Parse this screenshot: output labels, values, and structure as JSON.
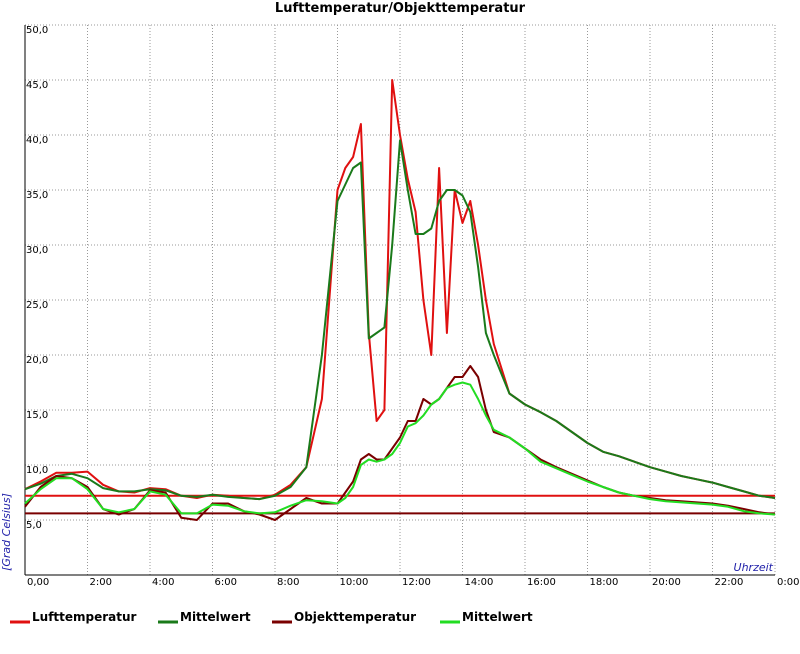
{
  "chart_data": {
    "type": "line",
    "title": "Lufttemperatur/Objekttemperatur",
    "y_label": "[Grad Celsius]",
    "x_label": "Uhrzeit",
    "grid": true,
    "legend": "bottom",
    "xlim": [
      0,
      24
    ],
    "ylim": [
      0,
      50
    ],
    "xticks": [
      {
        "value": 0,
        "label": "0,00"
      },
      {
        "value": 2,
        "label": "2:00"
      },
      {
        "value": 4,
        "label": "4:00"
      },
      {
        "value": 6,
        "label": "6:00"
      },
      {
        "value": 8,
        "label": "8:00"
      },
      {
        "value": 10,
        "label": "10:00"
      },
      {
        "value": 12,
        "label": "12:00"
      },
      {
        "value": 14,
        "label": "14:00"
      },
      {
        "value": 16,
        "label": "16:00"
      },
      {
        "value": 18,
        "label": "18:00"
      },
      {
        "value": 20,
        "label": "20:00"
      },
      {
        "value": 22,
        "label": "22:00"
      },
      {
        "value": 24,
        "label": "0:00"
      }
    ],
    "yticks": [
      {
        "value": 5,
        "label": "5,0"
      },
      {
        "value": 10,
        "label": "10,0"
      },
      {
        "value": 15,
        "label": "15,0"
      },
      {
        "value": 20,
        "label": "20,0"
      },
      {
        "value": 25,
        "label": "25,0"
      },
      {
        "value": 30,
        "label": "30,0"
      },
      {
        "value": 35,
        "label": "35,0"
      },
      {
        "value": 40,
        "label": "40,0"
      },
      {
        "value": 45,
        "label": "45,0"
      },
      {
        "value": 50,
        "label": "50,0"
      }
    ],
    "hlines": [
      {
        "value": 7.2,
        "color": "#e01010"
      },
      {
        "value": 5.6,
        "color": "#7a0000"
      }
    ],
    "x": [
      0,
      0.5,
      1,
      1.5,
      2,
      2.5,
      3,
      3.5,
      4,
      4.5,
      5,
      5.5,
      6,
      6.5,
      7,
      7.5,
      8,
      8.5,
      9,
      9.5,
      10,
      10.25,
      10.5,
      10.75,
      11,
      11.25,
      11.5,
      11.75,
      12,
      12.25,
      12.5,
      12.75,
      13,
      13.25,
      13.5,
      13.75,
      14,
      14.25,
      14.5,
      14.75,
      15,
      15.5,
      16,
      16.5,
      17,
      17.5,
      18,
      18.5,
      19,
      19.5,
      20,
      20.5,
      21,
      21.5,
      22,
      22.5,
      23,
      23.5,
      24
    ],
    "series": [
      {
        "name": "Lufttemperatur",
        "color": "#e01010",
        "values": [
          7.8,
          8.5,
          9.3,
          9.3,
          9.4,
          8.2,
          7.6,
          7.5,
          7.9,
          7.8,
          7.2,
          7.0,
          7.3,
          7.2,
          7.0,
          6.9,
          7.3,
          8.2,
          9.8,
          16,
          35,
          37,
          38,
          41,
          22,
          14,
          15,
          45,
          40,
          36,
          33,
          25,
          20,
          37,
          22,
          35,
          32,
          34,
          30,
          25,
          21,
          16.5,
          15.5,
          14.8,
          14,
          13,
          12,
          11.2,
          10.8,
          10.3,
          9.8,
          9.4,
          9.0,
          8.7,
          8.4,
          8.0,
          7.6,
          7.2,
          7.0
        ]
      },
      {
        "name": "Mittelwert",
        "color": "#1a7a1a",
        "values": [
          7.8,
          8.3,
          9.0,
          9.2,
          8.8,
          7.9,
          7.6,
          7.6,
          7.8,
          7.7,
          7.2,
          7.1,
          7.3,
          7.1,
          7.0,
          6.9,
          7.2,
          8.0,
          9.8,
          20,
          34,
          35.5,
          37,
          37.5,
          21.5,
          22,
          22.5,
          30,
          39.5,
          35,
          31,
          31,
          31.5,
          34,
          35,
          35,
          34.5,
          33,
          28,
          22,
          20,
          16.5,
          15.5,
          14.8,
          14,
          13,
          12,
          11.2,
          10.8,
          10.3,
          9.8,
          9.4,
          9.0,
          8.7,
          8.4,
          8.0,
          7.6,
          7.2,
          7.0
        ]
      },
      {
        "name": "Objekttemperatur",
        "color": "#7a0000",
        "values": [
          6.2,
          8.0,
          9.0,
          8.8,
          8.0,
          6.0,
          5.5,
          6.0,
          7.7,
          7.5,
          5.2,
          5.0,
          6.5,
          6.5,
          5.8,
          5.5,
          5.0,
          6.0,
          7.0,
          6.5,
          6.5,
          7.5,
          8.5,
          10.5,
          11,
          10.5,
          10.5,
          11.5,
          12.5,
          14,
          14,
          16,
          15.5,
          16,
          17,
          18,
          18,
          19,
          18,
          15,
          13,
          12.5,
          11.5,
          10.5,
          9.8,
          9.2,
          8.6,
          8.0,
          7.5,
          7.2,
          7.0,
          6.8,
          6.7,
          6.6,
          6.5,
          6.3,
          6.0,
          5.7,
          5.5
        ]
      },
      {
        "name": "Mittelwert",
        "color": "#22dd22",
        "values": [
          6.5,
          7.8,
          8.8,
          8.8,
          7.8,
          6.0,
          5.7,
          6.0,
          7.6,
          7.3,
          5.6,
          5.6,
          6.4,
          6.3,
          5.8,
          5.6,
          5.7,
          6.3,
          6.8,
          6.7,
          6.5,
          7.0,
          8.0,
          10.0,
          10.5,
          10.3,
          10.5,
          11,
          12,
          13.5,
          13.8,
          14.5,
          15.5,
          16,
          17,
          17.3,
          17.5,
          17.3,
          16,
          14.5,
          13.2,
          12.5,
          11.5,
          10.3,
          9.7,
          9.1,
          8.5,
          8.0,
          7.5,
          7.2,
          6.9,
          6.7,
          6.6,
          6.5,
          6.4,
          6.2,
          5.8,
          5.6,
          5.5
        ]
      }
    ]
  }
}
